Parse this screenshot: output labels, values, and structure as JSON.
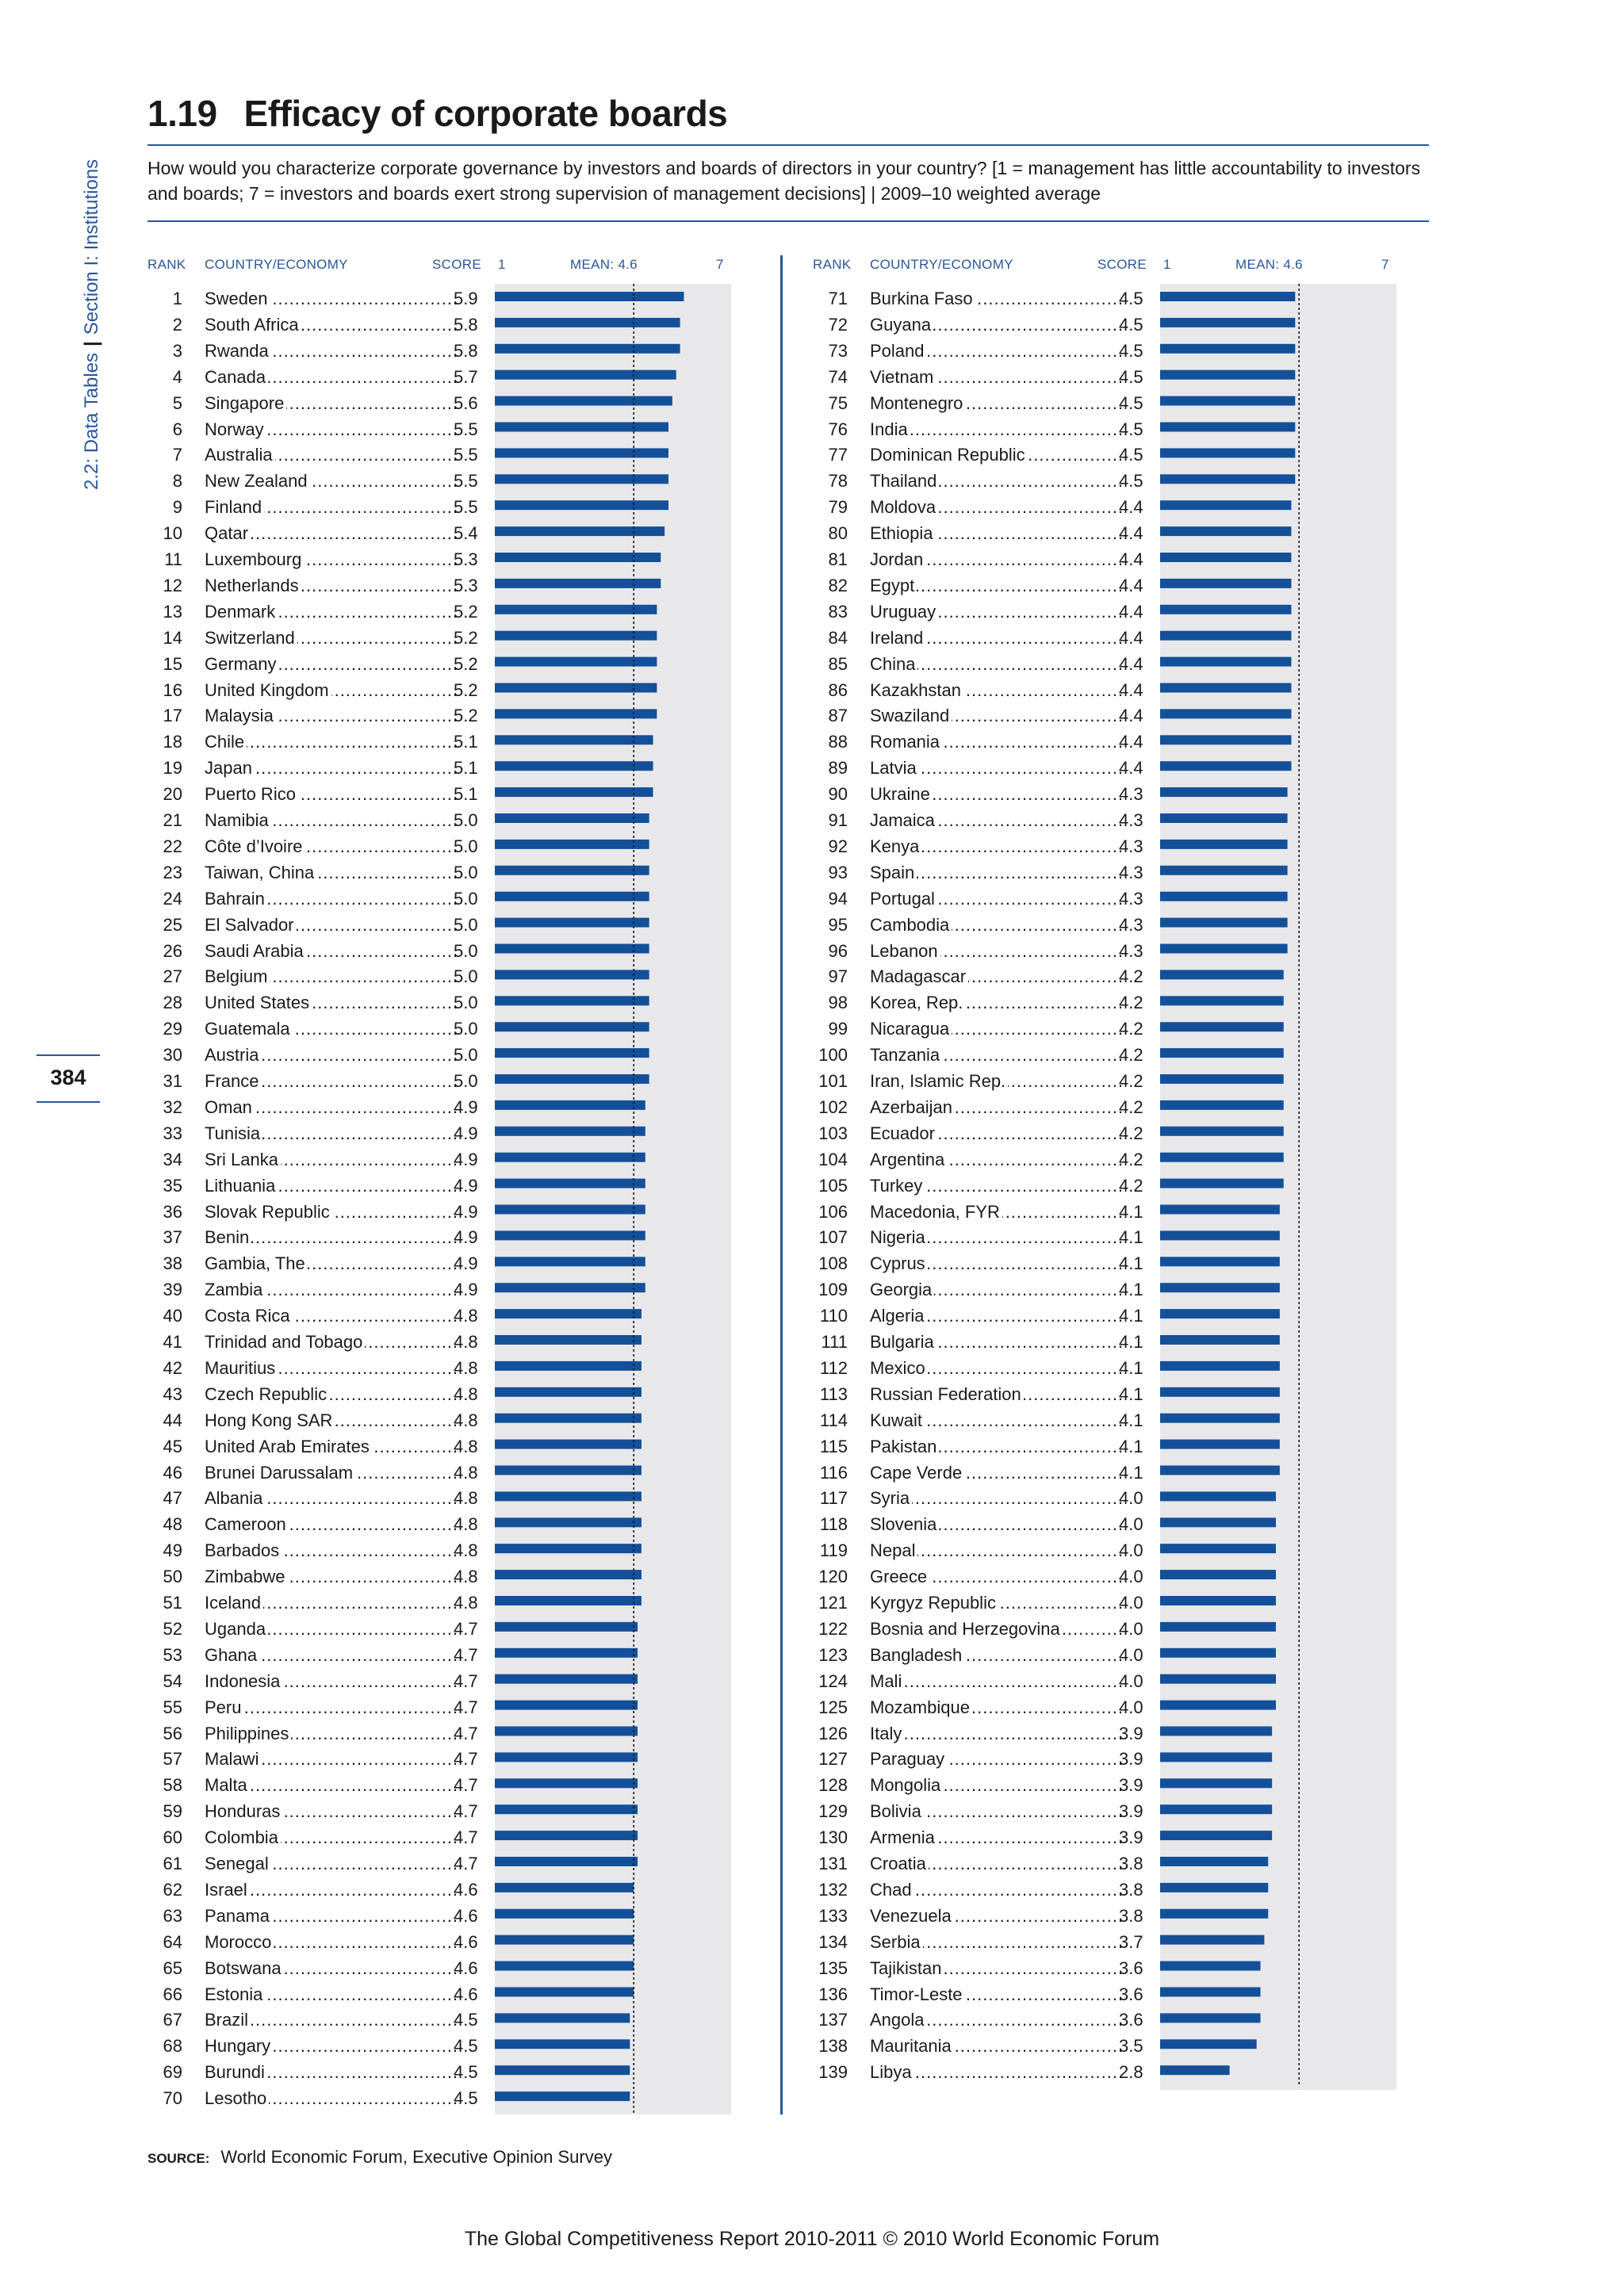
{
  "section": {
    "tables": "2.2: Data Tables",
    "section_label": "Section I: Institutions"
  },
  "page_number": "384",
  "header": {
    "number": "1.19",
    "title": "Efficacy of corporate boards",
    "question": "How would you characterize corporate governance by investors and boards of directors in your country? [1 = management has little accountability to investors and boards; 7 = investors and boards exert strong supervision of management decisions] | 2009–10 weighted average"
  },
  "column_headers": {
    "rank": "RANK",
    "country": "COUNTRY/ECONOMY",
    "score": "SCORE",
    "min": "1",
    "mean": "MEAN: 4.6",
    "max": "7"
  },
  "source": {
    "label": "SOURCE:",
    "text": "World Economic Forum, Executive Opinion Survey"
  },
  "footer": "The Global Competitiveness Report 2010-2011 © 2010 World Economic Forum",
  "colors": {
    "accent": "#2a5699",
    "bar": "#14509a",
    "panel": "#e8e8ea"
  },
  "chart_data": {
    "type": "bar",
    "orientation": "horizontal",
    "xlim": [
      1,
      7
    ],
    "mean": 4.6,
    "categories": [
      "Sweden",
      "South Africa",
      "Rwanda",
      "Canada",
      "Singapore",
      "Norway",
      "Australia",
      "New Zealand",
      "Finland",
      "Qatar",
      "Luxembourg",
      "Netherlands",
      "Denmark",
      "Switzerland",
      "Germany",
      "United Kingdom",
      "Malaysia",
      "Chile",
      "Japan",
      "Puerto Rico",
      "Namibia",
      "Côte d’Ivoire",
      "Taiwan, China",
      "Bahrain",
      "El Salvador",
      "Saudi Arabia",
      "Belgium",
      "United States",
      "Guatemala",
      "Austria",
      "France",
      "Oman",
      "Tunisia",
      "Sri Lanka",
      "Lithuania",
      "Slovak Republic",
      "Benin",
      "Gambia, The",
      "Zambia",
      "Costa Rica",
      "Trinidad and Tobago",
      "Mauritius",
      "Czech Republic",
      "Hong Kong SAR",
      "United Arab Emirates",
      "Brunei Darussalam",
      "Albania",
      "Cameroon",
      "Barbados",
      "Zimbabwe",
      "Iceland",
      "Uganda",
      "Ghana",
      "Indonesia",
      "Peru",
      "Philippines",
      "Malawi",
      "Malta",
      "Honduras",
      "Colombia",
      "Senegal",
      "Israel",
      "Panama",
      "Morocco",
      "Botswana",
      "Estonia",
      "Brazil",
      "Hungary",
      "Burundi",
      "Lesotho",
      "Burkina Faso",
      "Guyana",
      "Poland",
      "Vietnam",
      "Montenegro",
      "India",
      "Dominican Republic",
      "Thailand",
      "Moldova",
      "Ethiopia",
      "Jordan",
      "Egypt",
      "Uruguay",
      "Ireland",
      "China",
      "Kazakhstan",
      "Swaziland",
      "Romania",
      "Latvia",
      "Ukraine",
      "Jamaica",
      "Kenya",
      "Spain",
      "Portugal",
      "Cambodia",
      "Lebanon",
      "Madagascar",
      "Korea, Rep.",
      "Nicaragua",
      "Tanzania",
      "Iran, Islamic Rep.",
      "Azerbaijan",
      "Ecuador",
      "Argentina",
      "Turkey",
      "Macedonia, FYR",
      "Nigeria",
      "Cyprus",
      "Georgia",
      "Algeria",
      "Bulgaria",
      "Mexico",
      "Russian Federation",
      "Kuwait",
      "Pakistan",
      "Cape Verde",
      "Syria",
      "Slovenia",
      "Nepal",
      "Greece",
      "Kyrgyz Republic",
      "Bosnia and Herzegovina",
      "Bangladesh",
      "Mali",
      "Mozambique",
      "Italy",
      "Paraguay",
      "Mongolia",
      "Bolivia",
      "Armenia",
      "Croatia",
      "Chad",
      "Venezuela",
      "Serbia",
      "Tajikistan",
      "Timor-Leste",
      "Angola",
      "Mauritania",
      "Libya"
    ],
    "values": [
      "5.9",
      "5.8",
      "5.8",
      "5.7",
      "5.6",
      "5.5",
      "5.5",
      "5.5",
      "5.5",
      "5.4",
      "5.3",
      "5.3",
      "5.2",
      "5.2",
      "5.2",
      "5.2",
      "5.2",
      "5.1",
      "5.1",
      "5.1",
      "5.0",
      "5.0",
      "5.0",
      "5.0",
      "5.0",
      "5.0",
      "5.0",
      "5.0",
      "5.0",
      "5.0",
      "5.0",
      "4.9",
      "4.9",
      "4.9",
      "4.9",
      "4.9",
      "4.9",
      "4.9",
      "4.9",
      "4.8",
      "4.8",
      "4.8",
      "4.8",
      "4.8",
      "4.8",
      "4.8",
      "4.8",
      "4.8",
      "4.8",
      "4.8",
      "4.8",
      "4.7",
      "4.7",
      "4.7",
      "4.7",
      "4.7",
      "4.7",
      "4.7",
      "4.7",
      "4.7",
      "4.7",
      "4.6",
      "4.6",
      "4.6",
      "4.6",
      "4.6",
      "4.5",
      "4.5",
      "4.5",
      "4.5",
      "4.5",
      "4.5",
      "4.5",
      "4.5",
      "4.5",
      "4.5",
      "4.5",
      "4.5",
      "4.4",
      "4.4",
      "4.4",
      "4.4",
      "4.4",
      "4.4",
      "4.4",
      "4.4",
      "4.4",
      "4.4",
      "4.4",
      "4.3",
      "4.3",
      "4.3",
      "4.3",
      "4.3",
      "4.3",
      "4.3",
      "4.2",
      "4.2",
      "4.2",
      "4.2",
      "4.2",
      "4.2",
      "4.2",
      "4.2",
      "4.2",
      "4.1",
      "4.1",
      "4.1",
      "4.1",
      "4.1",
      "4.1",
      "4.1",
      "4.1",
      "4.1",
      "4.1",
      "4.1",
      "4.0",
      "4.0",
      "4.0",
      "4.0",
      "4.0",
      "4.0",
      "4.0",
      "4.0",
      "4.0",
      "3.9",
      "3.9",
      "3.9",
      "3.9",
      "3.9",
      "3.8",
      "3.8",
      "3.8",
      "3.7",
      "3.6",
      "3.6",
      "3.6",
      "3.5",
      "2.8"
    ]
  }
}
